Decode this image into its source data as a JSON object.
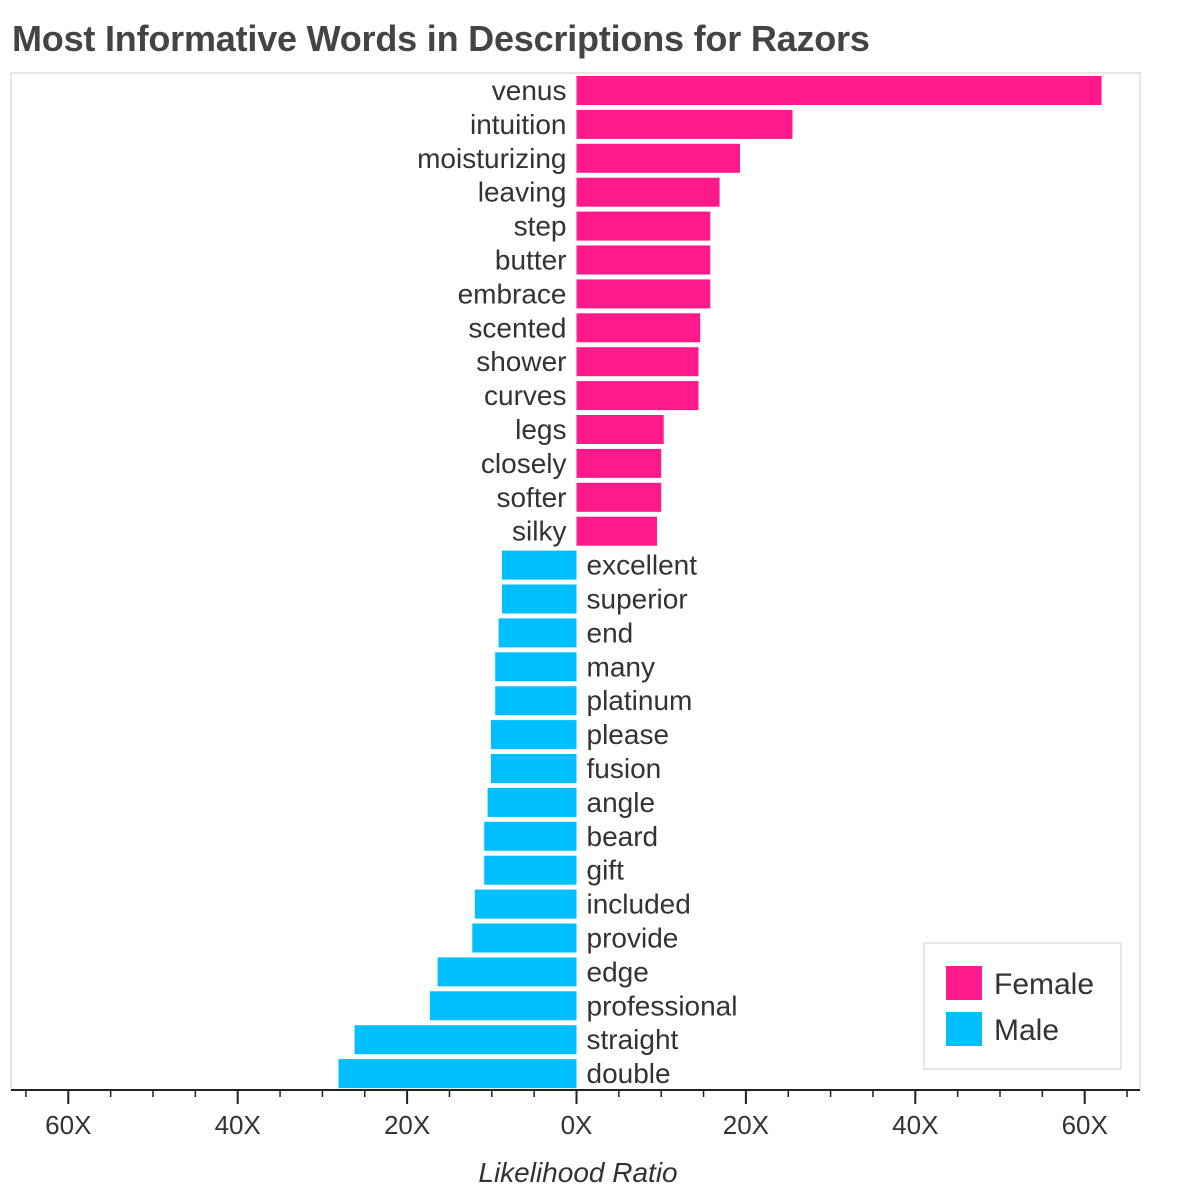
{
  "chart_data": {
    "type": "bar",
    "orientation": "horizontal-diverging",
    "title": "Most Informative Words in Descriptions for Razors",
    "xlabel": "Likelihood Ratio",
    "ylabel": "",
    "xlim": [
      -66,
      66
    ],
    "x_ticks": [
      {
        "value": -60,
        "label": "60X"
      },
      {
        "value": -40,
        "label": "40X"
      },
      {
        "value": -20,
        "label": "20X"
      },
      {
        "value": 0,
        "label": "0X"
      },
      {
        "value": 20,
        "label": "20X"
      },
      {
        "value": 40,
        "label": "40X"
      },
      {
        "value": 60,
        "label": "60X"
      }
    ],
    "legend": {
      "position": "bottom-right",
      "entries": [
        {
          "name": "Female",
          "color": "#ff1a8c"
        },
        {
          "name": "Male",
          "color": "#00bfff"
        }
      ]
    },
    "series": [
      {
        "name": "Female",
        "color": "#ff1a8c",
        "points": [
          {
            "word": "venus",
            "value": 62
          },
          {
            "word": "intuition",
            "value": 25.5
          },
          {
            "word": "moisturizing",
            "value": 19.3
          },
          {
            "word": "leaving",
            "value": 16.9
          },
          {
            "word": "step",
            "value": 15.8
          },
          {
            "word": "butter",
            "value": 15.8
          },
          {
            "word": "embrace",
            "value": 15.8
          },
          {
            "word": "scented",
            "value": 14.6
          },
          {
            "word": "shower",
            "value": 14.4
          },
          {
            "word": "curves",
            "value": 14.4
          },
          {
            "word": "legs",
            "value": 10.3
          },
          {
            "word": "closely",
            "value": 10.0
          },
          {
            "word": "softer",
            "value": 10.0
          },
          {
            "word": "silky",
            "value": 9.5
          }
        ]
      },
      {
        "name": "Male",
        "color": "#00bfff",
        "points": [
          {
            "word": "excellent",
            "value": 8.8
          },
          {
            "word": "superior",
            "value": 8.8
          },
          {
            "word": "end",
            "value": 9.2
          },
          {
            "word": "many",
            "value": 9.6
          },
          {
            "word": "platinum",
            "value": 9.6
          },
          {
            "word": "please",
            "value": 10.1
          },
          {
            "word": "fusion",
            "value": 10.1
          },
          {
            "word": "angle",
            "value": 10.5
          },
          {
            "word": "beard",
            "value": 10.9
          },
          {
            "word": "gift",
            "value": 10.9
          },
          {
            "word": "included",
            "value": 12.0
          },
          {
            "word": "provide",
            "value": 12.3
          },
          {
            "word": "edge",
            "value": 16.4
          },
          {
            "word": "professional",
            "value": 17.3
          },
          {
            "word": "straight",
            "value": 26.2
          },
          {
            "word": "double",
            "value": 28.1
          }
        ]
      }
    ]
  }
}
